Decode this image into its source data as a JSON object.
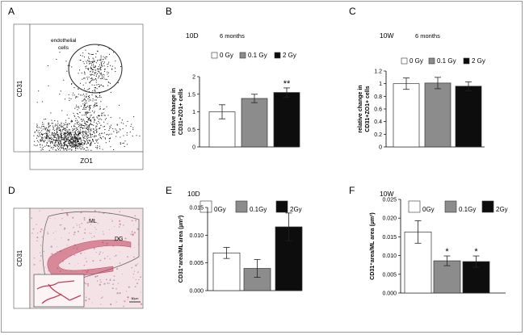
{
  "panel_letters": [
    "A",
    "B",
    "C",
    "D",
    "E",
    "F"
  ],
  "flow": {
    "ylabel": "CD31",
    "xlabel": "ZO1",
    "gate_label_line1": "endothelial",
    "gate_label_line2": "cells",
    "dot_color": "#111111"
  },
  "histology": {
    "ylabel": "CD31",
    "region_ml": "ML",
    "region_dg": "DG",
    "scale_label": "50µm",
    "tissue_color": "#f4e3e6",
    "stain_color": "#c0405a"
  },
  "colors": {
    "white_bar": "#ffffff",
    "grey_bar": "#8c8c8c",
    "black_bar": "#0d0d0d"
  },
  "chart_data": [
    {
      "panel": "B",
      "type": "bar",
      "timepoint": "10D",
      "duration": "6 months",
      "ylabel": [
        "relative change in",
        "CD31+ZO1+ cells"
      ],
      "categories": [
        "0 Gy",
        "0.1 Gy",
        "2 Gy"
      ],
      "values": [
        1.0,
        1.38,
        1.55
      ],
      "errors": [
        0.2,
        0.12,
        0.13
      ],
      "significance": [
        "",
        "",
        "**"
      ],
      "ylim": [
        0,
        2
      ],
      "yticks": [
        0,
        0.5,
        1,
        1.5,
        2
      ],
      "tick_labels": [
        "0",
        "0.5",
        "1",
        "1.5",
        "2"
      ]
    },
    {
      "panel": "C",
      "type": "bar",
      "timepoint": "10W",
      "duration": "6 months",
      "ylabel": [
        "relative change in",
        "CD31+ZO1+ cells"
      ],
      "categories": [
        "0 Gy",
        "0.1 Gy",
        "2 Gy"
      ],
      "values": [
        1.0,
        1.01,
        0.96
      ],
      "errors": [
        0.09,
        0.09,
        0.07
      ],
      "significance": [
        "",
        "",
        ""
      ],
      "ylim": [
        0,
        1.2
      ],
      "yticks": [
        0,
        0.2,
        0.4,
        0.6,
        0.8,
        1,
        1.2
      ],
      "tick_labels": [
        "0",
        "0.2",
        "0.4",
        "0.6",
        "0.8",
        "1",
        "1.2"
      ]
    },
    {
      "panel": "E",
      "type": "bar",
      "timepoint": "10D",
      "duration": "",
      "ylabel": [
        "CD31⁺area/ML area (µm²)"
      ],
      "categories": [
        "0Gy",
        "0.1Gy",
        "2Gy"
      ],
      "values": [
        0.0068,
        0.004,
        0.0115
      ],
      "errors": [
        0.001,
        0.0016,
        0.0025
      ],
      "significance": [
        "",
        "",
        ""
      ],
      "ylim": [
        0,
        0.015
      ],
      "yticks": [
        0,
        0.005,
        0.01,
        0.015
      ],
      "tick_labels": [
        "0.000",
        "0.005",
        "0.010",
        "0.015"
      ]
    },
    {
      "panel": "F",
      "type": "bar",
      "timepoint": "10W",
      "duration": "",
      "ylabel": [
        "CD31⁺area/ML area (µm²)"
      ],
      "categories": [
        "0Gy",
        "0.1Gy",
        "2Gy"
      ],
      "values": [
        0.0163,
        0.0086,
        0.0084
      ],
      "errors": [
        0.003,
        0.0013,
        0.0015
      ],
      "significance": [
        "",
        "*",
        "*"
      ],
      "ylim": [
        0,
        0.025
      ],
      "yticks": [
        0,
        0.005,
        0.01,
        0.015,
        0.02,
        0.025
      ],
      "tick_labels": [
        "0.000",
        "0.005",
        "0.010",
        "0.015",
        "0.020",
        "0.025"
      ]
    }
  ]
}
